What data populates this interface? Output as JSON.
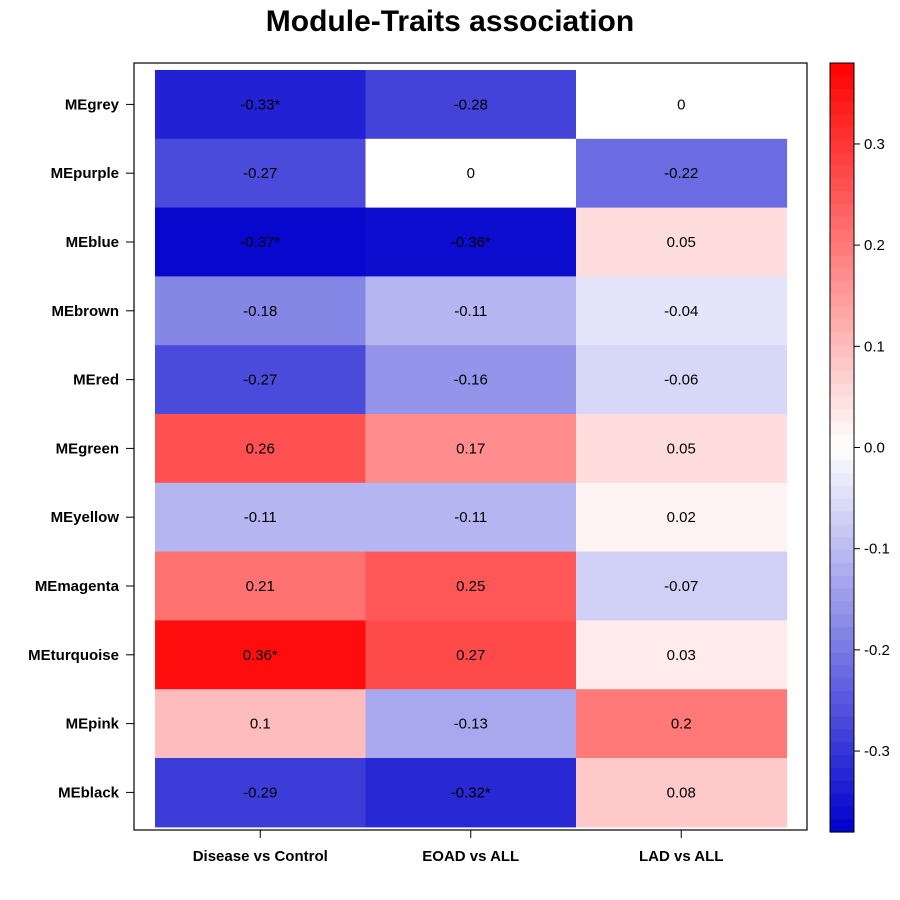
{
  "chart_data": {
    "type": "heatmap",
    "title": "Module-Traits association",
    "rows": [
      "MEgrey",
      "MEpurple",
      "MEblue",
      "MEbrown",
      "MEred",
      "MEgreen",
      "MEyellow",
      "MEmagenta",
      "MEturquoise",
      "MEpink",
      "MEblack"
    ],
    "columns": [
      "Disease vs Control",
      "EOAD vs ALL",
      "LAD vs ALL"
    ],
    "values": [
      [
        -0.33,
        -0.28,
        0
      ],
      [
        -0.27,
        0,
        -0.22
      ],
      [
        -0.37,
        -0.36,
        0.05
      ],
      [
        -0.18,
        -0.11,
        -0.04
      ],
      [
        -0.27,
        -0.16,
        -0.06
      ],
      [
        0.26,
        0.17,
        0.05
      ],
      [
        -0.11,
        -0.11,
        0.02
      ],
      [
        0.21,
        0.25,
        -0.07
      ],
      [
        0.36,
        0.27,
        0.03
      ],
      [
        0.1,
        -0.13,
        0.2
      ],
      [
        -0.29,
        -0.32,
        0.08
      ]
    ],
    "cell_labels": [
      [
        "-0.33*",
        "-0.28",
        "0"
      ],
      [
        "-0.27",
        "0",
        "-0.22"
      ],
      [
        "-0.37*",
        "-0.36*",
        "0.05"
      ],
      [
        "-0.18",
        "-0.11",
        "-0.04"
      ],
      [
        "-0.27",
        "-0.16",
        "-0.06"
      ],
      [
        "0.26",
        "0.17",
        "0.05"
      ],
      [
        "-0.11",
        "-0.11",
        "0.02"
      ],
      [
        "0.21",
        "0.25",
        "-0.07"
      ],
      [
        "0.36*",
        "0.27",
        "0.03"
      ],
      [
        "0.1",
        "-0.13",
        "0.2"
      ],
      [
        "-0.29",
        "-0.32*",
        "0.08"
      ]
    ],
    "colorbar": {
      "range": [
        -0.38,
        0.38
      ],
      "ticks": [
        0.3,
        0.2,
        0.1,
        0.0,
        -0.1,
        -0.2,
        -0.3
      ],
      "tick_labels": [
        "0.3",
        "0.2",
        "0.1",
        "0.0",
        "-0.1",
        "-0.2",
        "-0.3"
      ],
      "low_color": "#0000CD",
      "mid_color": "#FFFFFF",
      "high_color": "#FF0000"
    }
  }
}
